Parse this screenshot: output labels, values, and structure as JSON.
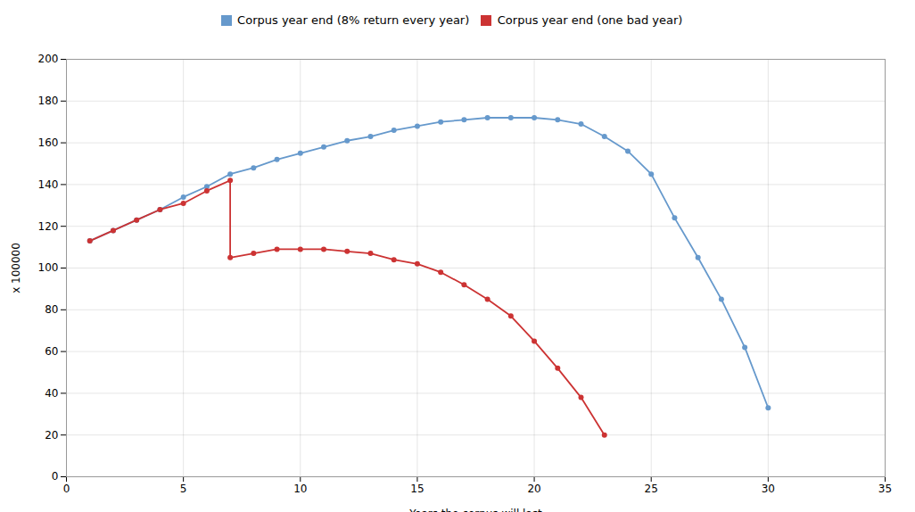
{
  "chart_data": {
    "type": "line",
    "xlabel": "Years the corpus will last",
    "ylabel": "x 100000",
    "xlim": [
      0,
      35
    ],
    "ylim": [
      0,
      200
    ],
    "xticks": [
      0,
      5,
      10,
      15,
      20,
      25,
      30,
      35
    ],
    "yticks": [
      0,
      20,
      40,
      60,
      80,
      100,
      120,
      140,
      160,
      180,
      200
    ],
    "grid": true,
    "legend": "top",
    "marker": "circle",
    "line_style": "solid",
    "series": [
      {
        "name": "Corpus year end (8% return every year)",
        "color": "#6699cc",
        "x": [
          1,
          2,
          3,
          4,
          5,
          6,
          7,
          8,
          9,
          10,
          11,
          12,
          13,
          14,
          15,
          16,
          17,
          18,
          19,
          20,
          21,
          22,
          23,
          24,
          25,
          26,
          27,
          28,
          29,
          30
        ],
        "values": [
          113,
          118,
          123,
          128,
          134,
          139,
          145,
          148,
          152,
          155,
          158,
          161,
          163,
          166,
          168,
          170,
          171,
          172,
          172,
          172,
          171,
          169,
          163,
          156,
          145,
          124,
          105,
          85,
          62,
          33
        ]
      },
      {
        "name": "Corpus year end (one bad year)",
        "color": "#cc3333",
        "x": [
          1,
          2,
          3,
          4,
          5,
          6,
          7,
          7,
          8,
          9,
          10,
          11,
          12,
          13,
          14,
          15,
          16,
          17,
          18,
          19,
          20,
          21,
          22,
          23
        ],
        "values": [
          113,
          118,
          123,
          128,
          131,
          137,
          142,
          105,
          107,
          109,
          109,
          109,
          108,
          107,
          104,
          102,
          98,
          92,
          85,
          77,
          65,
          52,
          38,
          20
        ]
      }
    ]
  }
}
